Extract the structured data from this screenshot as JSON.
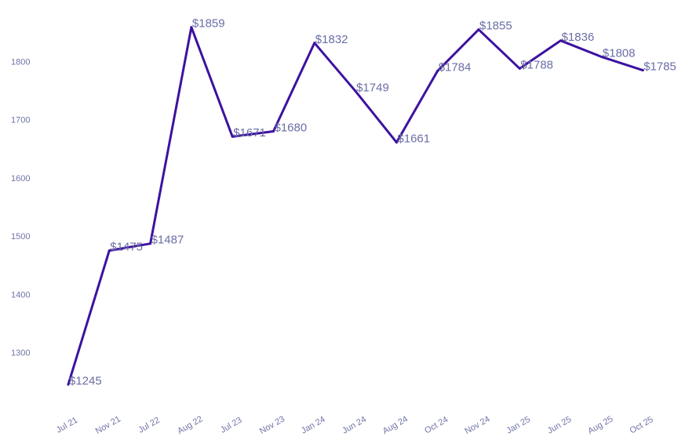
{
  "chart_data": {
    "type": "line",
    "title": "",
    "xlabel": "",
    "ylabel": "",
    "categories": [
      "Jul 21",
      "Nov 21",
      "Jul 22",
      "Aug 22",
      "Jul 23",
      "Nov 23",
      "Jan 24",
      "Jun 24",
      "Aug 24",
      "Oct 24",
      "Nov 24",
      "Jan 25",
      "Jun 25",
      "Aug 25",
      "Oct 25"
    ],
    "series": [
      {
        "values": [
          1245,
          1475,
          1487,
          1859,
          1671,
          1680,
          1832,
          1749,
          1661,
          1784,
          1855,
          1788,
          1836,
          1808,
          1785
        ],
        "labels": [
          "$1245",
          "$1475",
          "$1487",
          "$1859",
          "$1671",
          "$1680",
          "$1832",
          "$1749",
          "$1661",
          "$1784",
          "$1855",
          "$1788",
          "$1836",
          "$1808",
          "$1785"
        ]
      }
    ],
    "yticks": [
      "1300",
      "1400",
      "1500",
      "1600",
      "1700",
      "1800"
    ],
    "ylim": [
      1200,
      1880
    ],
    "grid": false,
    "legend": "none",
    "colors": {
      "line": "#3d12a0",
      "tick_text": "#7073a8",
      "label_text": "#6b6ea6"
    }
  }
}
